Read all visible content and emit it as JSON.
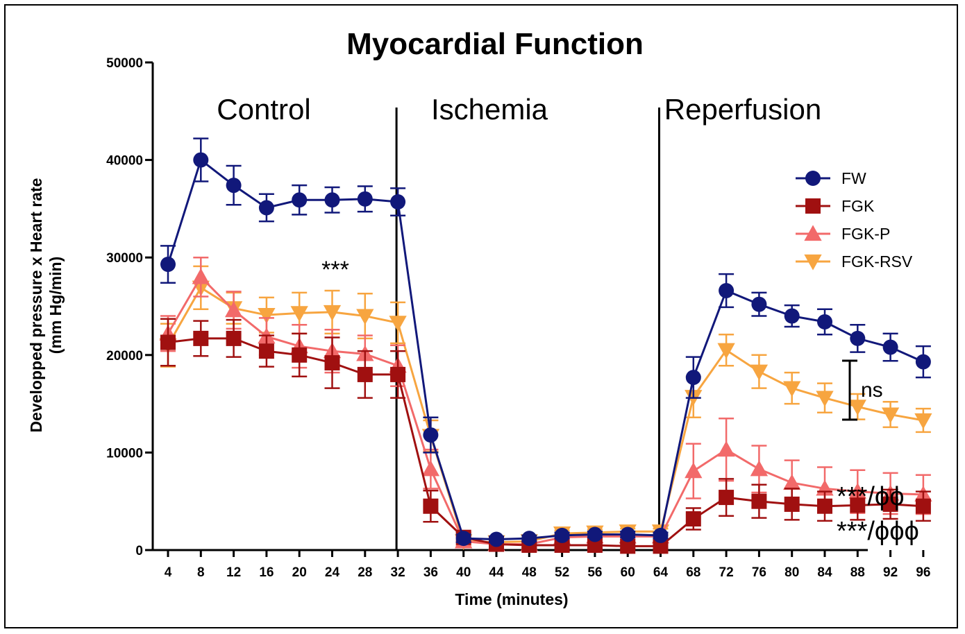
{
  "chart_data": {
    "type": "line",
    "title": "Myocardial Function",
    "xlabel": "Time (minutes)",
    "ylabel_line1": "Developped pressure x Heart rate",
    "ylabel_line2": "(mm Hg/min)",
    "ylim": [
      0,
      50000
    ],
    "yticks": [
      0,
      10000,
      20000,
      30000,
      40000,
      50000
    ],
    "x": [
      4,
      8,
      12,
      16,
      20,
      24,
      28,
      32,
      36,
      40,
      44,
      48,
      52,
      56,
      60,
      64,
      68,
      72,
      76,
      80,
      84,
      88,
      92,
      96
    ],
    "phases": [
      {
        "label": "Control",
        "center": 16
      },
      {
        "label": "Ischemia",
        "center": 48
      },
      {
        "label": "Reperfusion",
        "center": 80
      }
    ],
    "phase_dividers": [
      32,
      64
    ],
    "series": [
      {
        "name": "FW",
        "color": "#11187a",
        "marker": "circle",
        "values": [
          29300,
          40000,
          37400,
          35100,
          35900,
          35900,
          36000,
          35700,
          11800,
          1200,
          1100,
          1200,
          1500,
          1600,
          1600,
          1500,
          17700,
          26600,
          25200,
          24000,
          23400,
          21700,
          20800,
          19300
        ],
        "errors": [
          1900,
          2200,
          2000,
          1400,
          1500,
          1300,
          1300,
          1400,
          1800,
          400,
          300,
          300,
          300,
          300,
          300,
          300,
          2100,
          1700,
          1200,
          1100,
          1300,
          1400,
          1400,
          1600
        ]
      },
      {
        "name": "FGK",
        "color": "#a01010",
        "marker": "square",
        "values": [
          21300,
          21700,
          21700,
          20400,
          20000,
          19200,
          18000,
          18000,
          4500,
          1300,
          600,
          500,
          500,
          500,
          400,
          400,
          3200,
          5400,
          5000,
          4700,
          4500,
          4600,
          4700,
          4500
        ],
        "errors": [
          2400,
          1800,
          1900,
          1600,
          2200,
          2600,
          2400,
          2400,
          1600,
          500,
          300,
          300,
          300,
          300,
          300,
          300,
          1100,
          1900,
          1700,
          1600,
          1500,
          1500,
          1500,
          1500
        ]
      },
      {
        "name": "FGK-P",
        "color": "#f26a6a",
        "marker": "triangle-up",
        "values": [
          22200,
          28000,
          24600,
          21900,
          20900,
          20400,
          20100,
          18900,
          8300,
          900,
          600,
          600,
          1300,
          1400,
          1400,
          1400,
          8100,
          10300,
          8300,
          6900,
          6300,
          6000,
          5800,
          5700
        ],
        "errors": [
          1800,
          2000,
          1900,
          1900,
          2200,
          2200,
          1900,
          2100,
          2000,
          500,
          300,
          300,
          400,
          300,
          300,
          300,
          2800,
          3200,
          2400,
          2300,
          2200,
          2200,
          2100,
          2000
        ]
      },
      {
        "name": "FGK-RSV",
        "color": "#f7a540",
        "marker": "triangle-down",
        "values": [
          21000,
          26900,
          24800,
          24100,
          24300,
          24400,
          24000,
          23300,
          11700,
          900,
          800,
          900,
          1700,
          1800,
          1900,
          1900,
          15700,
          20500,
          18300,
          16600,
          15600,
          14700,
          13900,
          13300
        ],
        "errors": [
          2200,
          2200,
          1600,
          1800,
          2100,
          2200,
          2300,
          2100,
          1600,
          400,
          300,
          300,
          300,
          300,
          300,
          300,
          2100,
          1600,
          1700,
          1600,
          1500,
          1300,
          1300,
          1200
        ]
      }
    ],
    "annotations": {
      "control_significance": "***",
      "ns_bracket": "ns",
      "fgkp_significance": "***/ϕϕ",
      "fgk_significance": "***/ϕϕϕ"
    }
  }
}
